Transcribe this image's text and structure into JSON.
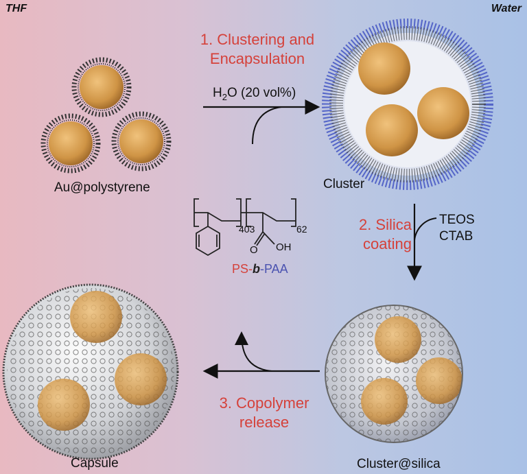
{
  "solvent_left": "THF",
  "solvent_right": "Water",
  "step1": {
    "line1": "1. Clustering and",
    "line2": "Encapsulation"
  },
  "step1_condition": {
    "prefix": "H",
    "sub": "2",
    "suffix": "O (20 vol%)"
  },
  "step2": {
    "line1": "2. Silica",
    "line2": "coating"
  },
  "step2_reagents": {
    "line1": "TEOS",
    "line2": "CTAB"
  },
  "step3": {
    "line1": "3. Copolymer",
    "line2": "release"
  },
  "labels": {
    "au_polystyrene": "Au@polystyrene",
    "cluster": "Cluster",
    "cluster_silica": "Cluster@silica",
    "capsule": "Capsule"
  },
  "polymer": {
    "sub_ps": "403",
    "sub_paa": "62",
    "carbonyl_o": "O",
    "hydroxyl": "OH",
    "name_ps": "PS-",
    "name_b": "b",
    "name_paa": "-PAA"
  },
  "colors": {
    "step_text": "#d5413a",
    "ps": "#d5413a",
    "paa": "#4a52b0",
    "gold": "#d49a48",
    "brush_blue": "#5566c8"
  }
}
